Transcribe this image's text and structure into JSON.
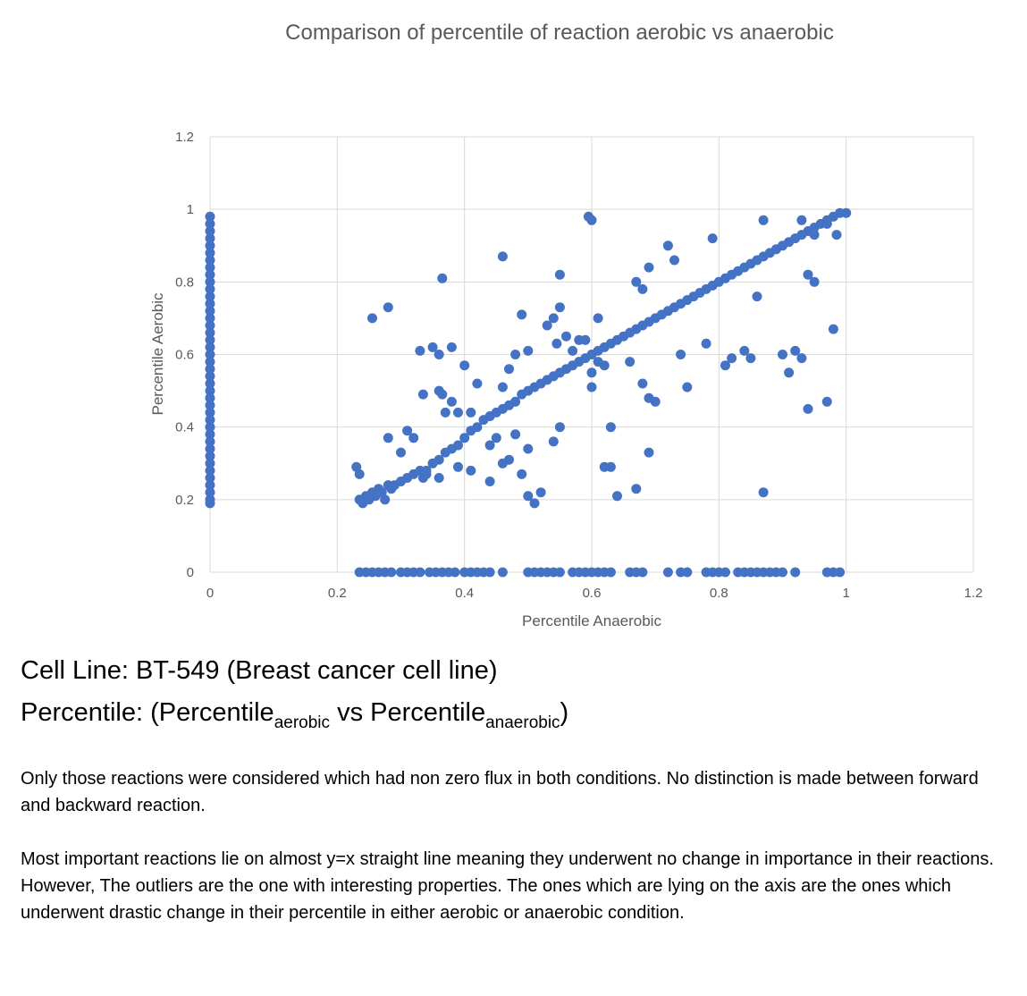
{
  "chart_data": {
    "type": "scatter",
    "title": "Comparison of percentile of reaction aerobic vs anaerobic",
    "xlabel": "Percentile Anaerobic",
    "ylabel": "Percentile Aerobic",
    "xlim": [
      0,
      1.2
    ],
    "ylim": [
      0,
      1.2
    ],
    "xticks": [
      "0",
      "0.2",
      "0.4",
      "0.6",
      "0.8",
      "1",
      "1.2"
    ],
    "yticks": [
      "0",
      "0.2",
      "0.4",
      "0.6",
      "0.8",
      "1",
      "1.2"
    ],
    "grid": true,
    "marker_color": "#4472c4",
    "points": [
      [
        0,
        0.19
      ],
      [
        0,
        0.2
      ],
      [
        0,
        0.22
      ],
      [
        0,
        0.24
      ],
      [
        0,
        0.26
      ],
      [
        0,
        0.28
      ],
      [
        0,
        0.3
      ],
      [
        0,
        0.32
      ],
      [
        0,
        0.34
      ],
      [
        0,
        0.36
      ],
      [
        0,
        0.38
      ],
      [
        0,
        0.4
      ],
      [
        0,
        0.42
      ],
      [
        0,
        0.44
      ],
      [
        0,
        0.46
      ],
      [
        0,
        0.48
      ],
      [
        0,
        0.5
      ],
      [
        0,
        0.52
      ],
      [
        0,
        0.54
      ],
      [
        0,
        0.56
      ],
      [
        0,
        0.58
      ],
      [
        0,
        0.6
      ],
      [
        0,
        0.62
      ],
      [
        0,
        0.64
      ],
      [
        0,
        0.66
      ],
      [
        0,
        0.68
      ],
      [
        0,
        0.7
      ],
      [
        0,
        0.72
      ],
      [
        0,
        0.74
      ],
      [
        0,
        0.76
      ],
      [
        0,
        0.78
      ],
      [
        0,
        0.8
      ],
      [
        0,
        0.82
      ],
      [
        0,
        0.84
      ],
      [
        0,
        0.86
      ],
      [
        0,
        0.88
      ],
      [
        0,
        0.9
      ],
      [
        0,
        0.92
      ],
      [
        0,
        0.94
      ],
      [
        0,
        0.96
      ],
      [
        0,
        0.98
      ],
      [
        0.235,
        0
      ],
      [
        0.245,
        0
      ],
      [
        0.255,
        0
      ],
      [
        0.265,
        0
      ],
      [
        0.275,
        0
      ],
      [
        0.285,
        0
      ],
      [
        0.3,
        0
      ],
      [
        0.31,
        0
      ],
      [
        0.32,
        0
      ],
      [
        0.33,
        0
      ],
      [
        0.345,
        0
      ],
      [
        0.355,
        0
      ],
      [
        0.365,
        0
      ],
      [
        0.375,
        0
      ],
      [
        0.385,
        0
      ],
      [
        0.4,
        0
      ],
      [
        0.41,
        0
      ],
      [
        0.42,
        0
      ],
      [
        0.43,
        0
      ],
      [
        0.44,
        0
      ],
      [
        0.46,
        0
      ],
      [
        0.5,
        0
      ],
      [
        0.51,
        0
      ],
      [
        0.52,
        0
      ],
      [
        0.53,
        0
      ],
      [
        0.54,
        0
      ],
      [
        0.55,
        0
      ],
      [
        0.57,
        0
      ],
      [
        0.58,
        0
      ],
      [
        0.59,
        0
      ],
      [
        0.6,
        0
      ],
      [
        0.61,
        0
      ],
      [
        0.62,
        0
      ],
      [
        0.63,
        0
      ],
      [
        0.66,
        0
      ],
      [
        0.67,
        0
      ],
      [
        0.68,
        0
      ],
      [
        0.72,
        0
      ],
      [
        0.74,
        0
      ],
      [
        0.75,
        0
      ],
      [
        0.78,
        0
      ],
      [
        0.79,
        0
      ],
      [
        0.8,
        0
      ],
      [
        0.81,
        0
      ],
      [
        0.83,
        0
      ],
      [
        0.84,
        0
      ],
      [
        0.85,
        0
      ],
      [
        0.86,
        0
      ],
      [
        0.87,
        0
      ],
      [
        0.88,
        0
      ],
      [
        0.89,
        0
      ],
      [
        0.9,
        0
      ],
      [
        0.92,
        0
      ],
      [
        0.97,
        0
      ],
      [
        0.98,
        0
      ],
      [
        0.99,
        0
      ],
      [
        0.23,
        0.29
      ],
      [
        0.235,
        0.27
      ],
      [
        0.235,
        0.2
      ],
      [
        0.24,
        0.19
      ],
      [
        0.245,
        0.21
      ],
      [
        0.25,
        0.2
      ],
      [
        0.255,
        0.22
      ],
      [
        0.26,
        0.21
      ],
      [
        0.265,
        0.23
      ],
      [
        0.27,
        0.22
      ],
      [
        0.275,
        0.2
      ],
      [
        0.28,
        0.24
      ],
      [
        0.285,
        0.23
      ],
      [
        0.29,
        0.24
      ],
      [
        0.3,
        0.25
      ],
      [
        0.31,
        0.26
      ],
      [
        0.32,
        0.27
      ],
      [
        0.33,
        0.28
      ],
      [
        0.335,
        0.26
      ],
      [
        0.34,
        0.28
      ],
      [
        0.35,
        0.3
      ],
      [
        0.36,
        0.31
      ],
      [
        0.37,
        0.33
      ],
      [
        0.38,
        0.34
      ],
      [
        0.39,
        0.35
      ],
      [
        0.4,
        0.37
      ],
      [
        0.41,
        0.39
      ],
      [
        0.42,
        0.4
      ],
      [
        0.43,
        0.42
      ],
      [
        0.44,
        0.43
      ],
      [
        0.45,
        0.44
      ],
      [
        0.46,
        0.45
      ],
      [
        0.47,
        0.46
      ],
      [
        0.48,
        0.47
      ],
      [
        0.49,
        0.49
      ],
      [
        0.5,
        0.5
      ],
      [
        0.51,
        0.51
      ],
      [
        0.52,
        0.52
      ],
      [
        0.53,
        0.53
      ],
      [
        0.54,
        0.54
      ],
      [
        0.55,
        0.55
      ],
      [
        0.56,
        0.56
      ],
      [
        0.57,
        0.57
      ],
      [
        0.58,
        0.58
      ],
      [
        0.59,
        0.59
      ],
      [
        0.6,
        0.6
      ],
      [
        0.61,
        0.61
      ],
      [
        0.62,
        0.62
      ],
      [
        0.63,
        0.63
      ],
      [
        0.64,
        0.64
      ],
      [
        0.65,
        0.65
      ],
      [
        0.66,
        0.66
      ],
      [
        0.67,
        0.67
      ],
      [
        0.68,
        0.68
      ],
      [
        0.69,
        0.69
      ],
      [
        0.7,
        0.7
      ],
      [
        0.71,
        0.71
      ],
      [
        0.72,
        0.72
      ],
      [
        0.73,
        0.73
      ],
      [
        0.74,
        0.74
      ],
      [
        0.75,
        0.75
      ],
      [
        0.76,
        0.76
      ],
      [
        0.77,
        0.77
      ],
      [
        0.78,
        0.78
      ],
      [
        0.79,
        0.79
      ],
      [
        0.8,
        0.8
      ],
      [
        0.81,
        0.81
      ],
      [
        0.82,
        0.82
      ],
      [
        0.83,
        0.83
      ],
      [
        0.84,
        0.84
      ],
      [
        0.85,
        0.85
      ],
      [
        0.86,
        0.86
      ],
      [
        0.87,
        0.87
      ],
      [
        0.88,
        0.88
      ],
      [
        0.89,
        0.89
      ],
      [
        0.9,
        0.9
      ],
      [
        0.91,
        0.91
      ],
      [
        0.92,
        0.92
      ],
      [
        0.93,
        0.93
      ],
      [
        0.94,
        0.94
      ],
      [
        0.95,
        0.95
      ],
      [
        0.96,
        0.96
      ],
      [
        0.97,
        0.97
      ],
      [
        0.98,
        0.98
      ],
      [
        0.99,
        0.99
      ],
      [
        1.0,
        0.99
      ],
      [
        0.255,
        0.7
      ],
      [
        0.28,
        0.73
      ],
      [
        0.33,
        0.61
      ],
      [
        0.35,
        0.62
      ],
      [
        0.36,
        0.6
      ],
      [
        0.365,
        0.81
      ],
      [
        0.38,
        0.62
      ],
      [
        0.335,
        0.49
      ],
      [
        0.36,
        0.5
      ],
      [
        0.365,
        0.49
      ],
      [
        0.38,
        0.47
      ],
      [
        0.39,
        0.44
      ],
      [
        0.37,
        0.44
      ],
      [
        0.4,
        0.57
      ],
      [
        0.41,
        0.44
      ],
      [
        0.42,
        0.52
      ],
      [
        0.28,
        0.37
      ],
      [
        0.3,
        0.33
      ],
      [
        0.31,
        0.39
      ],
      [
        0.32,
        0.37
      ],
      [
        0.34,
        0.27
      ],
      [
        0.36,
        0.26
      ],
      [
        0.39,
        0.29
      ],
      [
        0.41,
        0.28
      ],
      [
        0.44,
        0.35
      ],
      [
        0.45,
        0.37
      ],
      [
        0.46,
        0.3
      ],
      [
        0.47,
        0.31
      ],
      [
        0.48,
        0.38
      ],
      [
        0.5,
        0.34
      ],
      [
        0.5,
        0.21
      ],
      [
        0.51,
        0.19
      ],
      [
        0.52,
        0.22
      ],
      [
        0.44,
        0.25
      ],
      [
        0.49,
        0.27
      ],
      [
        0.46,
        0.87
      ],
      [
        0.46,
        0.51
      ],
      [
        0.47,
        0.56
      ],
      [
        0.48,
        0.6
      ],
      [
        0.49,
        0.71
      ],
      [
        0.5,
        0.61
      ],
      [
        0.53,
        0.68
      ],
      [
        0.54,
        0.7
      ],
      [
        0.55,
        0.73
      ],
      [
        0.55,
        0.82
      ],
      [
        0.545,
        0.63
      ],
      [
        0.56,
        0.65
      ],
      [
        0.57,
        0.61
      ],
      [
        0.58,
        0.64
      ],
      [
        0.59,
        0.64
      ],
      [
        0.595,
        0.98
      ],
      [
        0.6,
        0.97
      ],
      [
        0.61,
        0.7
      ],
      [
        0.6,
        0.55
      ],
      [
        0.61,
        0.58
      ],
      [
        0.62,
        0.57
      ],
      [
        0.6,
        0.51
      ],
      [
        0.63,
        0.4
      ],
      [
        0.62,
        0.29
      ],
      [
        0.63,
        0.29
      ],
      [
        0.64,
        0.21
      ],
      [
        0.66,
        0.58
      ],
      [
        0.67,
        0.23
      ],
      [
        0.68,
        0.52
      ],
      [
        0.69,
        0.48
      ],
      [
        0.7,
        0.47
      ],
      [
        0.69,
        0.33
      ],
      [
        0.54,
        0.36
      ],
      [
        0.55,
        0.4
      ],
      [
        0.67,
        0.8
      ],
      [
        0.68,
        0.78
      ],
      [
        0.69,
        0.84
      ],
      [
        0.72,
        0.9
      ],
      [
        0.73,
        0.86
      ],
      [
        0.74,
        0.6
      ],
      [
        0.75,
        0.51
      ],
      [
        0.78,
        0.63
      ],
      [
        0.79,
        0.92
      ],
      [
        0.81,
        0.57
      ],
      [
        0.82,
        0.59
      ],
      [
        0.84,
        0.61
      ],
      [
        0.85,
        0.59
      ],
      [
        0.86,
        0.76
      ],
      [
        0.87,
        0.97
      ],
      [
        0.87,
        0.22
      ],
      [
        0.9,
        0.6
      ],
      [
        0.91,
        0.55
      ],
      [
        0.92,
        0.61
      ],
      [
        0.93,
        0.59
      ],
      [
        0.94,
        0.45
      ],
      [
        0.97,
        0.47
      ],
      [
        0.98,
        0.67
      ],
      [
        0.94,
        0.82
      ],
      [
        0.95,
        0.8
      ],
      [
        0.93,
        0.97
      ],
      [
        0.95,
        0.93
      ],
      [
        0.97,
        0.96
      ],
      [
        0.985,
        0.93
      ]
    ]
  },
  "captions": {
    "cell_line": "Cell Line: BT-549 (Breast cancer cell line)",
    "percentile_prefix": "Percentile: (Percentile",
    "sub_aerobic": "aerobic",
    "vs": " vs Percentile",
    "sub_anaerobic": "anaerobic",
    "percentile_suffix": ")",
    "paragraph1": "Only those reactions were considered which had non zero flux in both conditions. No distinction is made between forward and backward reaction.",
    "paragraph2": "Most important reactions lie on almost y=x straight line meaning they underwent no change in importance in their reactions. However, The outliers are the one with interesting properties. The ones which are lying on the axis are the ones which underwent drastic change in their percentile in either aerobic or anaerobic condition."
  }
}
